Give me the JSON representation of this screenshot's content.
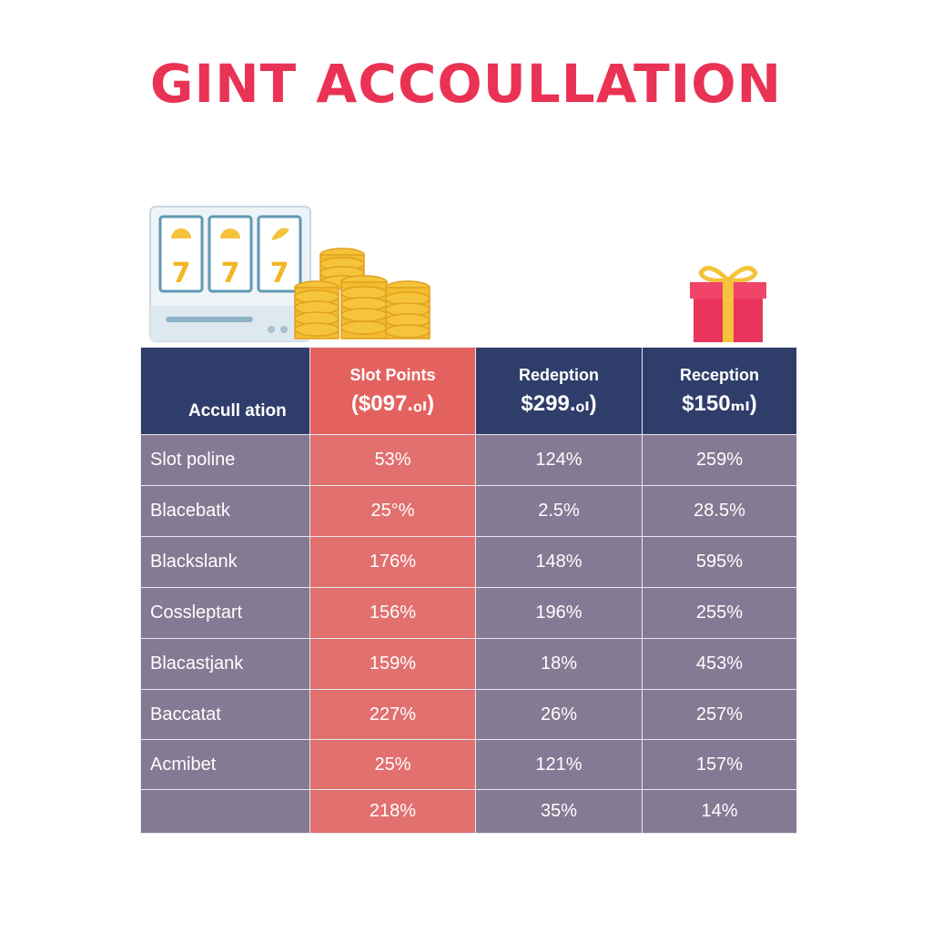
{
  "title": "GINT ACCOULLATION",
  "colors": {
    "title": "#ea3354",
    "header_bg": "#2f3d6b",
    "highlight_col": "#e1706f",
    "cell_bg": "#857a93"
  },
  "icons": [
    "slot-machine-icon",
    "coin-stack-icon",
    "gift-box-icon"
  ],
  "table": {
    "headers": [
      {
        "line1": "",
        "line2": "Accull ation"
      },
      {
        "line1": "Slot Points",
        "line2": "($097.ₒₗ)"
      },
      {
        "line1": "Redeption",
        "line2": "$299.ₒₗ)"
      },
      {
        "line1": "Reception",
        "line2": "$150ₘₗ)"
      }
    ],
    "rows": [
      [
        "Slot poline",
        "53%",
        "124%",
        "259%"
      ],
      [
        "Blacebatk",
        "25°%",
        "2.5%",
        "28.5%"
      ],
      [
        "Blackslank",
        "176%",
        "148%",
        "595%"
      ],
      [
        "Cossleptart",
        "156%",
        "196%",
        "255%"
      ],
      [
        "Blacastjank",
        "159%",
        "18%",
        "453%"
      ],
      [
        "Baccatat",
        "227%",
        "26%",
        "257%"
      ],
      [
        "Acmibet",
        "25%",
        "121%",
        "157%"
      ],
      [
        "",
        "218%",
        "35%",
        "14%"
      ]
    ]
  }
}
